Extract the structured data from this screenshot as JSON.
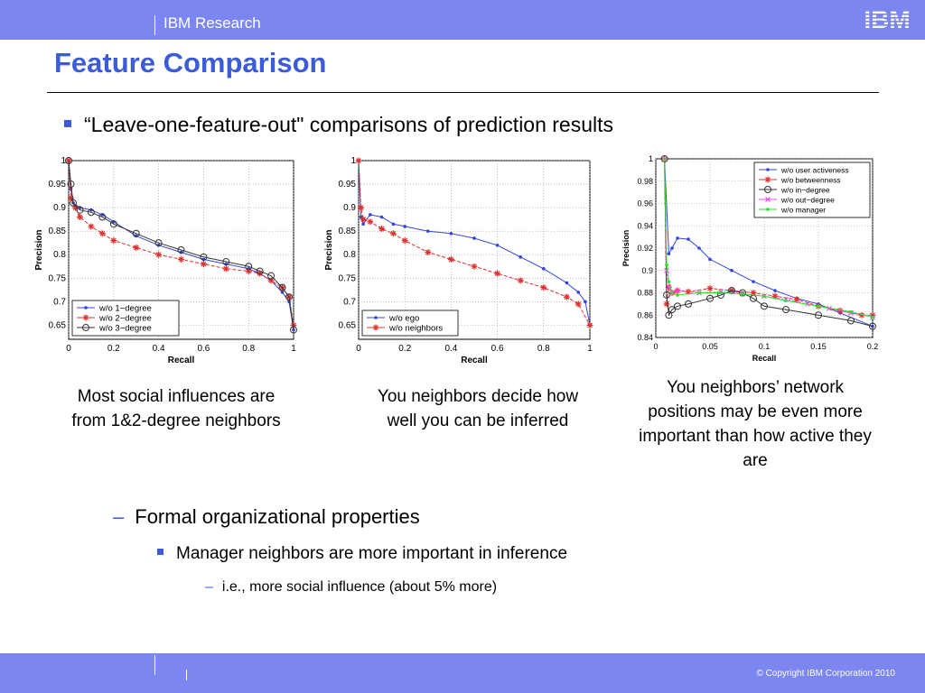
{
  "header": {
    "org": "IBM Research",
    "logo_text": "IBM"
  },
  "title": "Feature Comparison",
  "bullet": "“Leave-one-feature-out\" comparisons of prediction results",
  "captions": [
    "Most social influences are from 1&2-degree neighbors",
    "You neighbors decide how well you can be inferred",
    "You neighbors’ network positions may be even more important than how active they are"
  ],
  "sub_bullet": "Formal organizational properties",
  "sub_sub_bullet": "Manager neighbors are more important in inference",
  "sub_sub_sub_bullet": "i.e., more social influence (about 5% more)",
  "footer": {
    "copyright": "© Copyright IBM Corporation 2010"
  },
  "colors": {
    "bar": "#7b86f0",
    "accent": "#3b5bd9",
    "blue_series": "#3344dd",
    "red_series": "#e03030",
    "black_series": "#333333",
    "magenta_series": "#ee44ee",
    "green_series": "#33dd33"
  },
  "chart_data": [
    {
      "type": "line",
      "xlabel": "Recall",
      "ylabel": "Precision",
      "xlim": [
        0,
        1
      ],
      "ylim": [
        0.62,
        1.0
      ],
      "xticks": [
        "0",
        "0.2",
        "0.4",
        "0.6",
        "0.8",
        "1"
      ],
      "yticks": [
        "0.65",
        "0.7",
        "0.75",
        "0.8",
        "0.85",
        "0.9",
        "0.95",
        "1"
      ],
      "legend_position": "bottom-left",
      "series": [
        {
          "name": "w/o 1−degree",
          "color": "#3344dd",
          "marker": "dot",
          "x": [
            0,
            0.01,
            0.02,
            0.05,
            0.1,
            0.15,
            0.2,
            0.3,
            0.4,
            0.5,
            0.6,
            0.7,
            0.8,
            0.85,
            0.9,
            0.95,
            0.98,
            1.0
          ],
          "y": [
            1.0,
            0.94,
            0.91,
            0.9,
            0.895,
            0.885,
            0.87,
            0.84,
            0.82,
            0.805,
            0.79,
            0.78,
            0.77,
            0.76,
            0.745,
            0.72,
            0.7,
            0.64
          ]
        },
        {
          "name": "w/o 2−degree",
          "color": "#e03030",
          "marker": "star",
          "x": [
            0,
            0.01,
            0.03,
            0.05,
            0.1,
            0.15,
            0.2,
            0.3,
            0.4,
            0.5,
            0.6,
            0.7,
            0.8,
            0.85,
            0.9,
            0.95,
            0.98,
            1.0
          ],
          "y": [
            1.0,
            0.92,
            0.9,
            0.88,
            0.86,
            0.845,
            0.83,
            0.815,
            0.8,
            0.79,
            0.78,
            0.77,
            0.765,
            0.76,
            0.745,
            0.73,
            0.71,
            0.65
          ]
        },
        {
          "name": "w/o 3−degree",
          "color": "#333333",
          "marker": "circle",
          "x": [
            0,
            0.01,
            0.02,
            0.05,
            0.1,
            0.15,
            0.2,
            0.3,
            0.4,
            0.5,
            0.6,
            0.7,
            0.8,
            0.85,
            0.9,
            0.95,
            0.98,
            1.0
          ],
          "y": [
            1.0,
            0.95,
            0.91,
            0.895,
            0.89,
            0.88,
            0.865,
            0.845,
            0.825,
            0.81,
            0.795,
            0.785,
            0.775,
            0.765,
            0.755,
            0.73,
            0.71,
            0.64
          ]
        }
      ]
    },
    {
      "type": "line",
      "xlabel": "Recall",
      "ylabel": "Precision",
      "xlim": [
        0,
        1
      ],
      "ylim": [
        0.62,
        1.0
      ],
      "xticks": [
        "0",
        "0.2",
        "0.4",
        "0.6",
        "0.8",
        "1"
      ],
      "yticks": [
        "0.65",
        "0.7",
        "0.75",
        "0.8",
        "0.85",
        "0.9",
        "0.95",
        "1"
      ],
      "legend_position": "bottom-left",
      "series": [
        {
          "name": "w/o ego",
          "color": "#3344dd",
          "marker": "dot",
          "x": [
            0,
            0.01,
            0.02,
            0.05,
            0.1,
            0.15,
            0.2,
            0.3,
            0.4,
            0.5,
            0.6,
            0.7,
            0.8,
            0.9,
            0.95,
            0.98,
            1.0
          ],
          "y": [
            1.0,
            0.88,
            0.865,
            0.885,
            0.88,
            0.865,
            0.86,
            0.85,
            0.845,
            0.835,
            0.82,
            0.795,
            0.77,
            0.74,
            0.72,
            0.7,
            0.65
          ]
        },
        {
          "name": "w/o neighbors",
          "color": "#e03030",
          "marker": "star",
          "x": [
            0,
            0.01,
            0.02,
            0.05,
            0.1,
            0.15,
            0.2,
            0.3,
            0.4,
            0.5,
            0.6,
            0.7,
            0.8,
            0.9,
            0.95,
            1.0
          ],
          "y": [
            1.0,
            0.9,
            0.875,
            0.87,
            0.855,
            0.845,
            0.83,
            0.805,
            0.79,
            0.775,
            0.76,
            0.745,
            0.73,
            0.71,
            0.695,
            0.65
          ]
        }
      ]
    },
    {
      "type": "line",
      "xlabel": "Recall",
      "ylabel": "Precision",
      "xlim": [
        0,
        0.2
      ],
      "ylim": [
        0.84,
        1.0
      ],
      "xticks": [
        "0",
        "0.05",
        "0.1",
        "0.15",
        "0.2"
      ],
      "yticks": [
        "0.84",
        "0.86",
        "0.88",
        "0.9",
        "0.92",
        "0.94",
        "0.96",
        "0.98",
        "1"
      ],
      "legend_position": "top-right",
      "series": [
        {
          "name": "w/o user activeness",
          "color": "#3344dd",
          "marker": "dot",
          "x": [
            0.008,
            0.012,
            0.015,
            0.02,
            0.03,
            0.04,
            0.05,
            0.07,
            0.09,
            0.11,
            0.13,
            0.15,
            0.17,
            0.2
          ],
          "y": [
            1.0,
            0.915,
            0.92,
            0.929,
            0.928,
            0.92,
            0.91,
            0.9,
            0.89,
            0.882,
            0.875,
            0.87,
            0.862,
            0.85
          ]
        },
        {
          "name": "w/o betweenness",
          "color": "#e03030",
          "marker": "star",
          "x": [
            0.008,
            0.01,
            0.012,
            0.015,
            0.02,
            0.03,
            0.05,
            0.07,
            0.09,
            0.11,
            0.13,
            0.15,
            0.17,
            0.19,
            0.2
          ],
          "y": [
            1.0,
            0.87,
            0.885,
            0.88,
            0.882,
            0.881,
            0.884,
            0.882,
            0.88,
            0.877,
            0.874,
            0.868,
            0.864,
            0.86,
            0.86
          ]
        },
        {
          "name": "w/o in−degree",
          "color": "#333333",
          "marker": "circle",
          "x": [
            0.008,
            0.01,
            0.012,
            0.015,
            0.02,
            0.03,
            0.05,
            0.06,
            0.07,
            0.08,
            0.09,
            0.1,
            0.12,
            0.15,
            0.18,
            0.2
          ],
          "y": [
            1.0,
            0.878,
            0.86,
            0.865,
            0.868,
            0.87,
            0.875,
            0.878,
            0.882,
            0.88,
            0.875,
            0.868,
            0.865,
            0.86,
            0.855,
            0.85
          ]
        },
        {
          "name": "w/o out−degree",
          "color": "#ee44ee",
          "marker": "x",
          "x": [
            0.008,
            0.01,
            0.012,
            0.015,
            0.02,
            0.04,
            0.06,
            0.08,
            0.1,
            0.12,
            0.14,
            0.16,
            0.18,
            0.2
          ],
          "y": [
            1.0,
            0.9,
            0.885,
            0.88,
            0.882,
            0.88,
            0.881,
            0.879,
            0.877,
            0.874,
            0.87,
            0.866,
            0.862,
            0.858
          ]
        },
        {
          "name": "w/o manager",
          "color": "#33dd33",
          "marker": "dot",
          "x": [
            0.008,
            0.01,
            0.012,
            0.015,
            0.02,
            0.04,
            0.06,
            0.08,
            0.1,
            0.12,
            0.15,
            0.18,
            0.2
          ],
          "y": [
            1.0,
            0.905,
            0.89,
            0.88,
            0.878,
            0.88,
            0.88,
            0.879,
            0.877,
            0.873,
            0.868,
            0.863,
            0.858
          ]
        }
      ]
    }
  ]
}
